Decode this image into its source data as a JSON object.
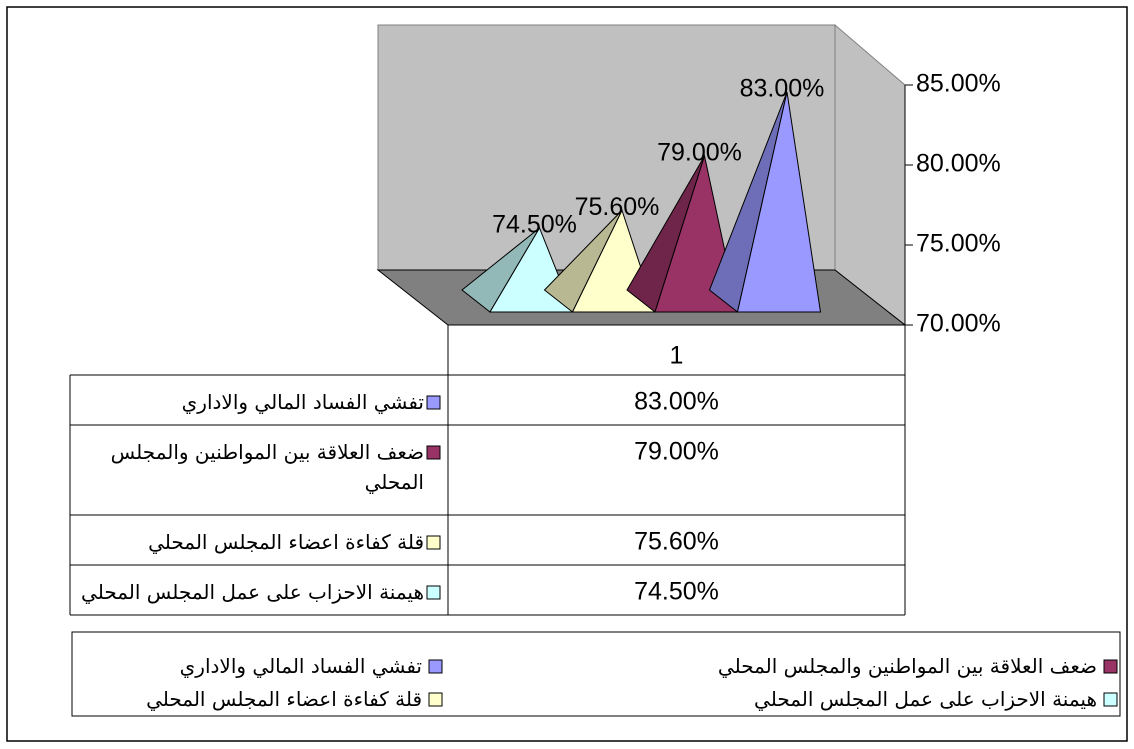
{
  "chart_data": {
    "type": "pyramid3d",
    "categories": [
      "1"
    ],
    "series": [
      {
        "name": "تفشي الفساد المالي والاداري",
        "color": "#9999ff",
        "values": [
          83
        ],
        "value_labels": [
          "83.00%"
        ]
      },
      {
        "name": "ضعف العلاقة بين المواطنين والمجلس المحلي",
        "color": "#993366",
        "values": [
          79
        ],
        "value_labels": [
          "79.00%"
        ]
      },
      {
        "name": "قلة كفاءة اعضاء المجلس المحلي",
        "color": "#ffffcc",
        "values": [
          75.6
        ],
        "value_labels": [
          "75.60%"
        ]
      },
      {
        "name": "هيمنة الاحزاب على عمل المجلس المحلي",
        "color": "#ccffff",
        "values": [
          74.5
        ],
        "value_labels": [
          "74.50%"
        ]
      }
    ],
    "ylim": [
      70,
      85
    ],
    "yticks": [
      {
        "value": 70,
        "label": "70.00%"
      },
      {
        "value": 75,
        "label": "75.00%"
      },
      {
        "value": 80,
        "label": "80.00%"
      },
      {
        "value": 85,
        "label": "85.00%"
      }
    ],
    "data_table": true,
    "legend": "bottom"
  }
}
